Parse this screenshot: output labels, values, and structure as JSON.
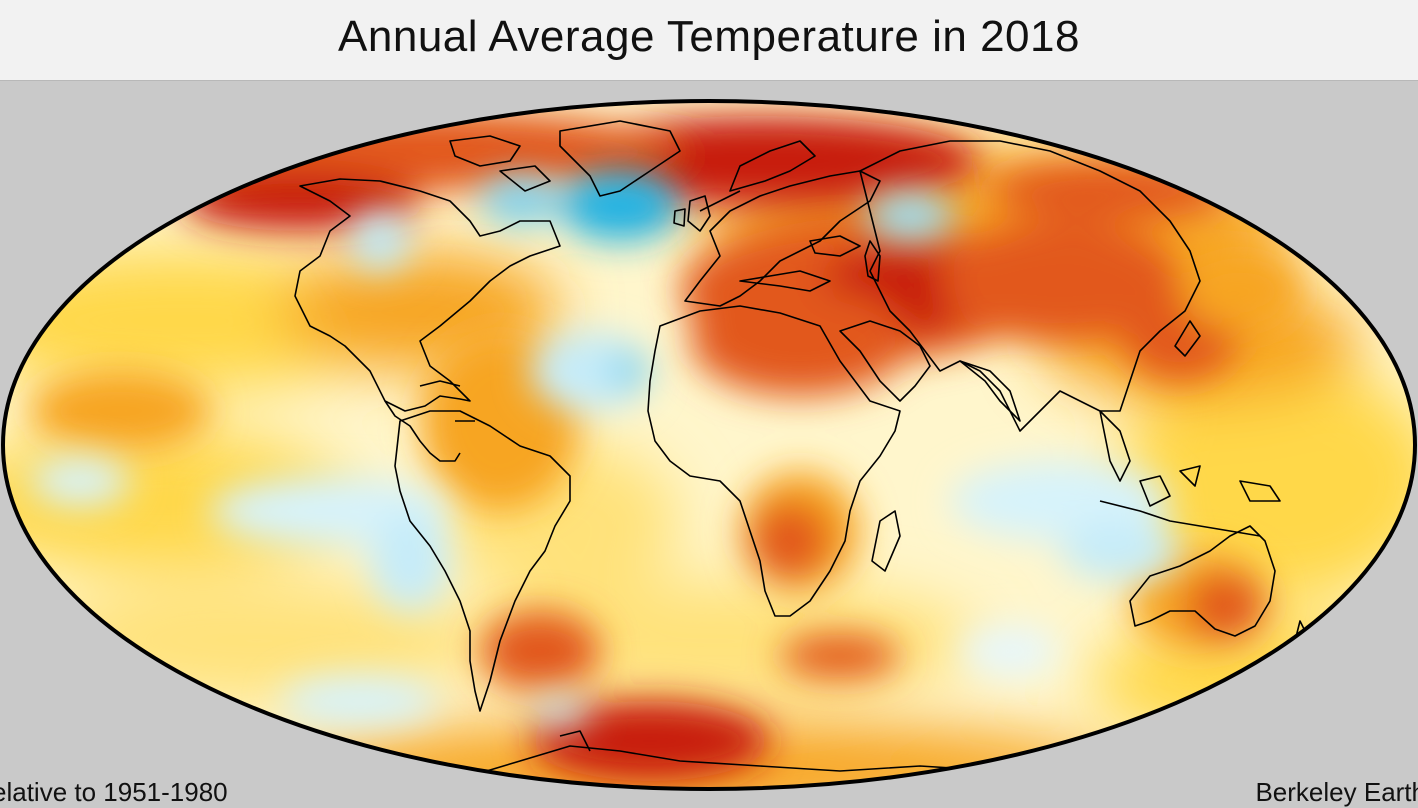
{
  "header": {
    "title": "Annual Average Temperature in 2018"
  },
  "footer": {
    "left_partial": "elative to 1951-1980",
    "right_partial": "Berkeley Earth"
  },
  "map": {
    "projection": "Mollweide",
    "colors": {
      "background": "#c9c9c9",
      "outline": "#000000",
      "cold_strong": "#22b4e4",
      "cold_light": "#d7f3fb",
      "neutral": "#fffbe6",
      "warm_light": "#ffd84a",
      "warm_mid": "#f7a520",
      "warm_strong": "#e2581c",
      "hot": "#c81e0c"
    }
  }
}
